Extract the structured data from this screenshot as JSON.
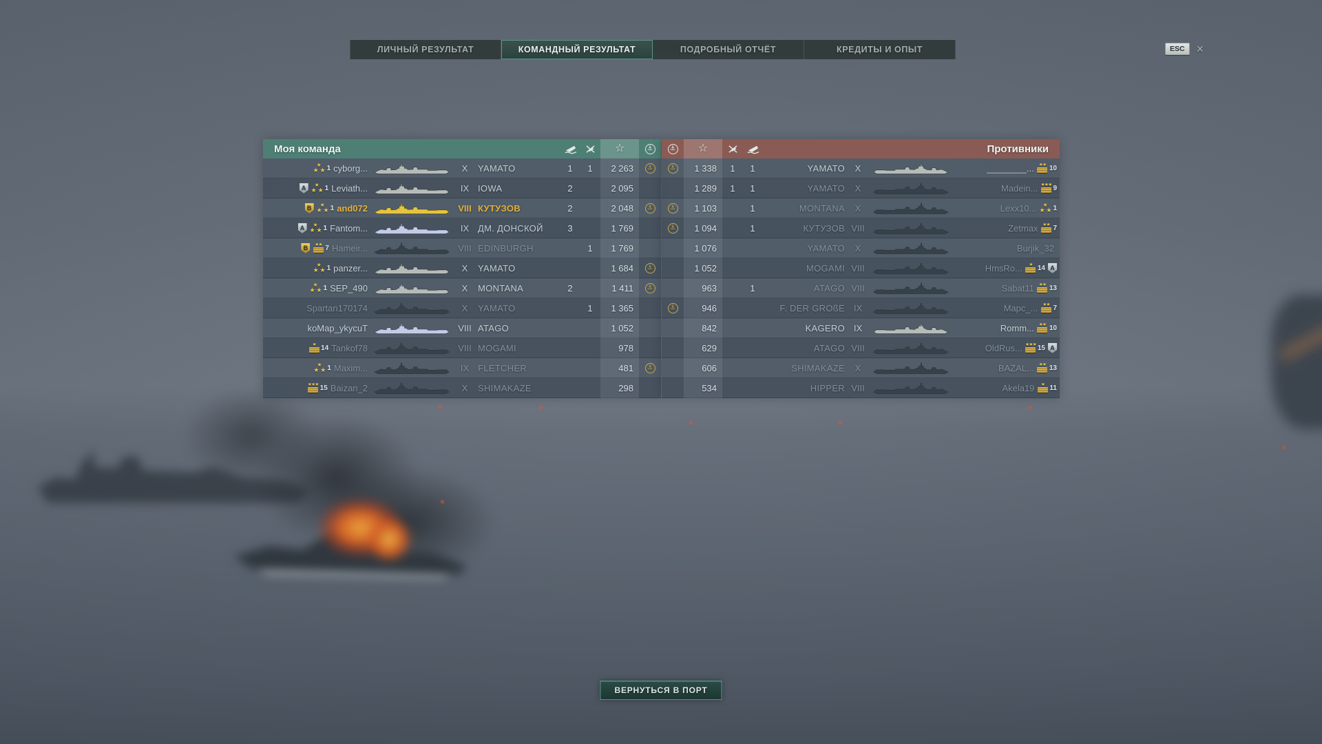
{
  "window": {
    "esc_label": "ESC",
    "close_icon": "×"
  },
  "tabs": [
    {
      "label": "ЛИЧНЫЙ РЕЗУЛЬТАТ",
      "active": false
    },
    {
      "label": "КОМАНДНЫЙ РЕЗУЛЬТАТ",
      "active": true
    },
    {
      "label": "ПОДРОБНЫЙ ОТЧЁТ",
      "active": false
    },
    {
      "label": "КРЕДИТЫ И ОПЫТ",
      "active": false
    }
  ],
  "columns": {
    "ships_destroyed": "ship-sunk-icon",
    "planes_destroyed": "plane-destroyed-icon",
    "experience": "star-icon",
    "karma": "karma-icon"
  },
  "colors": {
    "my_team_header": "#4e7f75",
    "enemy_team_header": "#8a5b54",
    "self_highlight": "#e2b13c",
    "badge_gold": "#e6c44c",
    "fire_accent": "#e8671f"
  },
  "my_team": {
    "title": "Моя команда",
    "players": [
      {
        "clan": "",
        "badge": {
          "type": "stars",
          "number": 1
        },
        "name": "cyborg...",
        "tier": "X",
        "ship": "YAMATO",
        "ships": "1",
        "planes": "1",
        "xp": "2 263",
        "karma": true,
        "state": "alive"
      },
      {
        "clan": "A",
        "badge": {
          "type": "stars",
          "number": 1
        },
        "name": "Leviath...",
        "tier": "IX",
        "ship": "IOWA",
        "ships": "2",
        "planes": "",
        "xp": "2 095",
        "karma": false,
        "state": "alive"
      },
      {
        "clan": "B",
        "badge": {
          "type": "stars",
          "number": 1
        },
        "name": "and072",
        "tier": "VIII",
        "ship": "КУТУЗОВ",
        "ships": "2",
        "planes": "",
        "xp": "2 048",
        "karma": true,
        "state": "self"
      },
      {
        "clan": "A",
        "badge": {
          "type": "stars",
          "number": 1
        },
        "name": "Fantom...",
        "tier": "IX",
        "ship": "ДМ. ДОНСКОЙ",
        "ships": "3",
        "planes": "",
        "xp": "1 769",
        "karma": false,
        "state": "division"
      },
      {
        "clan": "B",
        "badge": {
          "type": "medal",
          "stars": 2,
          "number": 7
        },
        "name": "Hameir...",
        "tier": "VIII",
        "ship": "EDINBURGH",
        "ships": "",
        "planes": "1",
        "xp": "1 769",
        "karma": false,
        "state": "dead"
      },
      {
        "clan": "",
        "badge": {
          "type": "stars",
          "number": 1
        },
        "name": "panzer...",
        "tier": "X",
        "ship": "YAMATO",
        "ships": "",
        "planes": "",
        "xp": "1 684",
        "karma": true,
        "state": "alive"
      },
      {
        "clan": "",
        "badge": {
          "type": "stars",
          "number": 1
        },
        "name": "SEP_490",
        "tier": "X",
        "ship": "MONTANA",
        "ships": "2",
        "planes": "",
        "xp": "1 411",
        "karma": true,
        "state": "alive"
      },
      {
        "clan": "",
        "badge": null,
        "name": "Spartan170174",
        "tier": "X",
        "ship": "YAMATO",
        "ships": "",
        "planes": "1",
        "xp": "1 365",
        "karma": false,
        "state": "dead"
      },
      {
        "clan": "",
        "badge": null,
        "name": "koMap_ykycuT",
        "tier": "VIII",
        "ship": "ATAGO",
        "ships": "",
        "planes": "",
        "xp": "1 052",
        "karma": false,
        "state": "division"
      },
      {
        "clan": "",
        "badge": {
          "type": "medal",
          "stars": 1,
          "number": 14
        },
        "name": "Tankof78",
        "tier": "VIII",
        "ship": "MOGAMI",
        "ships": "",
        "planes": "",
        "xp": "978",
        "karma": false,
        "state": "dead"
      },
      {
        "clan": "",
        "badge": {
          "type": "stars",
          "number": 1
        },
        "name": "Maxim...",
        "tier": "IX",
        "ship": "FLETCHER",
        "ships": "",
        "planes": "",
        "xp": "481",
        "karma": true,
        "state": "dead"
      },
      {
        "clan": "",
        "badge": {
          "type": "medal",
          "stars": 3,
          "number": 15
        },
        "name": "Baizan_2",
        "tier": "X",
        "ship": "SHIMAKAZE",
        "ships": "",
        "planes": "",
        "xp": "298",
        "karma": false,
        "state": "dead"
      }
    ]
  },
  "enemy_team": {
    "title": "Противники",
    "players": [
      {
        "clan": "",
        "badge": {
          "type": "medal",
          "stars": 2,
          "number": 10
        },
        "name": "________...",
        "tier": "X",
        "ship": "YAMATO",
        "ships": "1",
        "planes": "1",
        "xp": "1 338",
        "karma": true,
        "state": "alive"
      },
      {
        "clan": "",
        "badge": {
          "type": "medal",
          "stars": 3,
          "number": 9
        },
        "name": "Madein...",
        "tier": "X",
        "ship": "YAMATO",
        "ships": "1",
        "planes": "1",
        "xp": "1 289",
        "karma": false,
        "state": "dead"
      },
      {
        "clan": "",
        "badge": {
          "type": "stars",
          "number": 1
        },
        "name": "Lexx10...",
        "tier": "X",
        "ship": "MONTANA",
        "ships": "1",
        "planes": "",
        "xp": "1 103",
        "karma": true,
        "state": "dead"
      },
      {
        "clan": "",
        "badge": {
          "type": "medal",
          "stars": 2,
          "number": 7
        },
        "name": "Zetmax",
        "tier": "VIII",
        "ship": "КУТУЗОВ",
        "ships": "1",
        "planes": "",
        "xp": "1 094",
        "karma": true,
        "state": "dead"
      },
      {
        "clan": "",
        "badge": null,
        "name": "Burjik_32",
        "tier": "X",
        "ship": "YAMATO",
        "ships": "",
        "planes": "",
        "xp": "1 076",
        "karma": false,
        "state": "dead"
      },
      {
        "clan": "A",
        "badge": {
          "type": "medal",
          "stars": 1,
          "number": 14
        },
        "name": "HmsRo...",
        "tier": "VIII",
        "ship": "MOGAMI",
        "ships": "",
        "planes": "",
        "xp": "1 052",
        "karma": false,
        "state": "dead"
      },
      {
        "clan": "",
        "badge": {
          "type": "medal",
          "stars": 2,
          "number": 13
        },
        "name": "Sabat11",
        "tier": "VIII",
        "ship": "ATAGO",
        "ships": "1",
        "planes": "",
        "xp": "963",
        "karma": false,
        "state": "dead"
      },
      {
        "clan": "",
        "badge": {
          "type": "medal",
          "stars": 2,
          "number": 7
        },
        "name": "Mapc_...",
        "tier": "IX",
        "ship": "F. DER GROßE",
        "ships": "",
        "planes": "",
        "xp": "946",
        "karma": true,
        "state": "dead"
      },
      {
        "clan": "",
        "badge": {
          "type": "medal",
          "stars": 2,
          "number": 10
        },
        "name": "Romm...",
        "tier": "IX",
        "ship": "KAGERO",
        "ships": "",
        "planes": "",
        "xp": "842",
        "karma": false,
        "state": "alive"
      },
      {
        "clan": "A",
        "badge": {
          "type": "medal",
          "stars": 3,
          "number": 15
        },
        "name": "OldRus...",
        "tier": "VIII",
        "ship": "ATAGO",
        "ships": "",
        "planes": "",
        "xp": "629",
        "karma": false,
        "state": "dead"
      },
      {
        "clan": "",
        "badge": {
          "type": "medal",
          "stars": 2,
          "number": 13
        },
        "name": "BAZAL...",
        "tier": "X",
        "ship": "SHIMAKAZE",
        "ships": "",
        "planes": "",
        "xp": "606",
        "karma": false,
        "state": "dead"
      },
      {
        "clan": "",
        "badge": {
          "type": "medal",
          "stars": 1,
          "number": 11
        },
        "name": "Akela19",
        "tier": "VIII",
        "ship": "HIPPER",
        "ships": "",
        "planes": "",
        "xp": "534",
        "karma": false,
        "state": "dead"
      }
    ]
  },
  "footer": {
    "return_button": "ВЕРНУТЬСЯ В ПОРТ"
  }
}
